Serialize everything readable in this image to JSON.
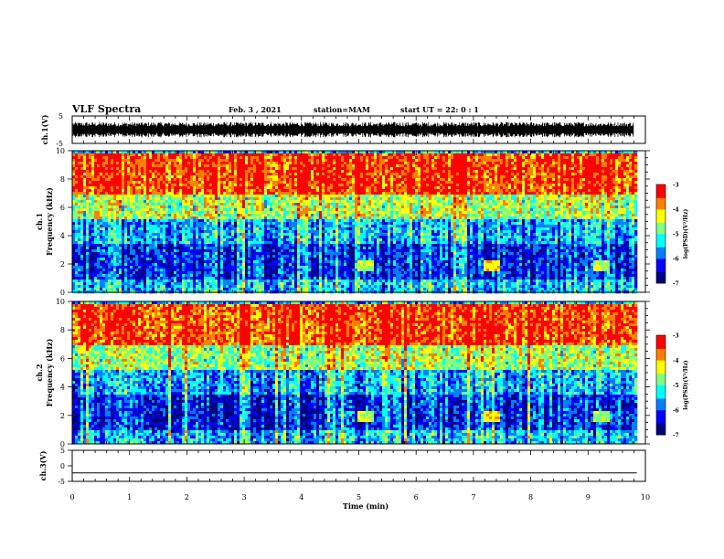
{
  "header": {
    "title": "VLF Spectra",
    "date": "Feb. 3  , 2021",
    "station": "station=MAM",
    "start": "start  UT  =   22: 0   : 1"
  },
  "colors": {
    "axis": "#000000",
    "waveform": "#000000",
    "colormap": [
      "#00007f",
      "#0000ff",
      "#0080ff",
      "#00ffff",
      "#80ff80",
      "#ffff00",
      "#ff8000",
      "#ff0000",
      "#ffffff"
    ]
  },
  "chart_data": [
    {
      "type": "line",
      "panel": "ch1-waveform",
      "ylabel": "ch.1(V)",
      "ylim": [
        -5,
        5
      ],
      "yticks": [
        "5",
        "-5"
      ],
      "xlim": [
        0,
        10
      ],
      "description_value": "dense noise waveform filling roughly -3 to 3 V"
    },
    {
      "type": "heatmap",
      "panel": "ch1-spectrogram",
      "ylabel": "ch.1\nFrequency (kHz)",
      "ylim": [
        0,
        10
      ],
      "yticks": [
        "0",
        "2",
        "4",
        "6",
        "8",
        "10"
      ],
      "xlim": [
        0,
        9.85
      ],
      "colorbar": {
        "label": "log(PSD)(V²/Hz)",
        "range": [
          -7,
          -3
        ],
        "ticks": [
          "-3",
          "-4",
          "-5",
          "-6",
          "-7"
        ]
      },
      "bands": [
        {
          "from_khz": 0,
          "to_khz": 1,
          "level": -5.5
        },
        {
          "from_khz": 1,
          "to_khz": 3.5,
          "level": -6.2
        },
        {
          "from_khz": 3.5,
          "to_khz": 5.2,
          "level": -5.6
        },
        {
          "from_khz": 5.2,
          "to_khz": 7,
          "level": -4.6
        },
        {
          "from_khz": 7,
          "to_khz": 10,
          "level": -3.5
        }
      ],
      "features": [
        {
          "t_min": 5.1,
          "f_khz": 2.0,
          "level": -4.8
        },
        {
          "t_min": 7.3,
          "f_khz": 2.0,
          "level": -4.5
        },
        {
          "t_min": 9.2,
          "f_khz": 2.0,
          "level": -4.9
        }
      ]
    },
    {
      "type": "heatmap",
      "panel": "ch2-spectrogram",
      "ylabel": "ch.2\nFrequency (kHz)",
      "ylim": [
        0,
        10
      ],
      "yticks": [
        "0",
        "2",
        "4",
        "6",
        "8",
        "10"
      ],
      "xlim": [
        0,
        9.85
      ],
      "colorbar": {
        "label": "log(PSD)(V²/Hz)",
        "range": [
          -7,
          -3
        ],
        "ticks": [
          "-3",
          "-4",
          "-5",
          "-6",
          "-7"
        ]
      },
      "bands": [
        {
          "from_khz": 0,
          "to_khz": 1,
          "level": -5.5
        },
        {
          "from_khz": 1,
          "to_khz": 3.5,
          "level": -6.2
        },
        {
          "from_khz": 3.5,
          "to_khz": 5.2,
          "level": -5.6
        },
        {
          "from_khz": 5.2,
          "to_khz": 7,
          "level": -4.6
        },
        {
          "from_khz": 7,
          "to_khz": 10,
          "level": -3.5
        }
      ],
      "features": [
        {
          "t_min": 5.1,
          "f_khz": 2.0,
          "level": -4.8
        },
        {
          "t_min": 7.3,
          "f_khz": 2.0,
          "level": -4.5
        },
        {
          "t_min": 9.2,
          "f_khz": 2.0,
          "level": -4.9
        }
      ]
    },
    {
      "type": "line",
      "panel": "ch3-waveform",
      "ylabel": "ch.3(V)",
      "ylim": [
        -5,
        5
      ],
      "yticks": [
        "5",
        "0",
        "-5"
      ],
      "xlim": [
        0,
        10
      ],
      "values": {
        "x": [
          0,
          9.85
        ],
        "y": [
          -2.3,
          -2.3
        ]
      }
    }
  ],
  "xaxis": {
    "label": "Time  (min)",
    "ticks": [
      "0",
      "1",
      "2",
      "3",
      "4",
      "5",
      "6",
      "7",
      "8",
      "9",
      "10"
    ]
  }
}
